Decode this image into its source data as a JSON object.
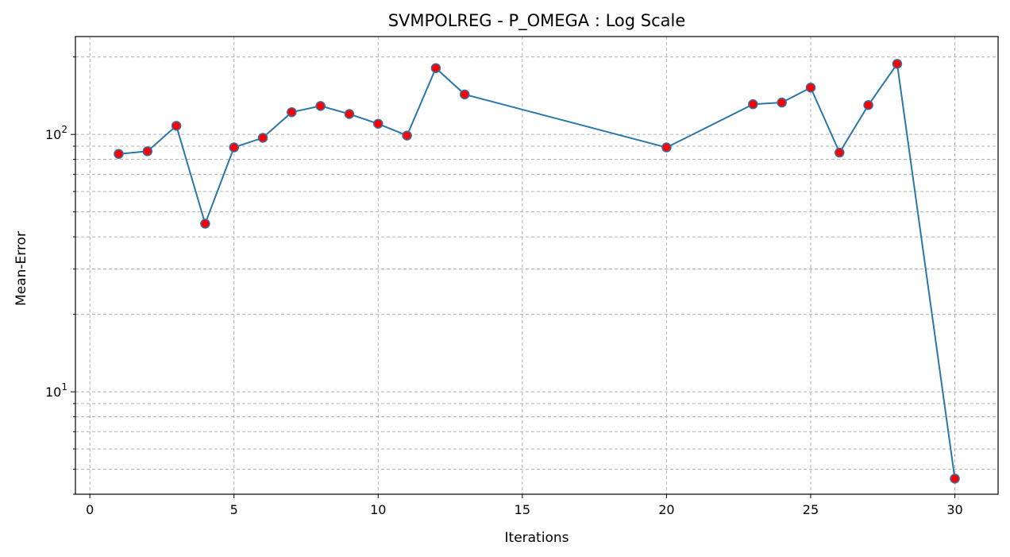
{
  "chart_data": {
    "type": "line",
    "title": "SVMPOLREG - P_OMEGA : Log Scale",
    "xlabel": "Iterations",
    "ylabel": "Mean-Error",
    "yscale": "log",
    "xlim": [
      -0.5,
      31.5
    ],
    "ylim": [
      4,
      240
    ],
    "grid": true,
    "x_ticks": [
      0,
      5,
      10,
      15,
      20,
      25,
      30
    ],
    "x_tick_labels": [
      "0",
      "5",
      "10",
      "15",
      "20",
      "25",
      "30"
    ],
    "y_major_ticks": [
      10,
      100
    ],
    "y_tick_labels": [
      {
        "base": "10",
        "exp": "1"
      },
      {
        "base": "10",
        "exp": "2"
      }
    ],
    "y_minor_ticks": [
      4,
      5,
      6,
      7,
      8,
      9,
      20,
      30,
      40,
      50,
      60,
      70,
      80,
      90,
      200
    ],
    "line_color": "#2a77aa",
    "marker_fill": "#ff0000",
    "marker_edge": "#3a6ea5",
    "x": [
      1,
      2,
      3,
      4,
      5,
      6,
      7,
      8,
      9,
      10,
      11,
      12,
      13,
      20,
      23,
      24,
      25,
      26,
      27,
      28,
      30
    ],
    "y": [
      84,
      86,
      108,
      45,
      89,
      97,
      122,
      129,
      120,
      110,
      99,
      181,
      143,
      89,
      131,
      133,
      152,
      85,
      130,
      188,
      4.6
    ]
  }
}
